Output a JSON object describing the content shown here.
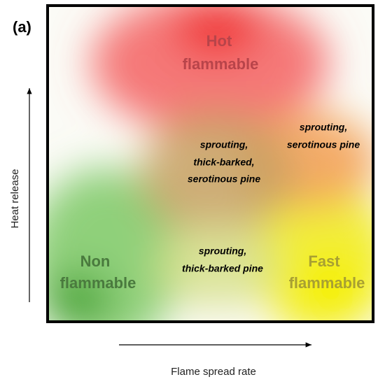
{
  "panel_label": "(a)",
  "zones": [
    {
      "lines": [
        "Hot",
        "flammable"
      ]
    },
    {
      "lines": [
        "Non",
        "flammable"
      ]
    },
    {
      "lines": [
        "Fast",
        "flammable"
      ]
    }
  ],
  "annotations": [
    {
      "lines": [
        "sprouting,",
        "thick-barked,",
        "serotinous pine"
      ]
    },
    {
      "lines": [
        "sprouting,",
        "serotinous pine"
      ]
    },
    {
      "lines": [
        "sprouting,",
        "thick-barked pine"
      ]
    }
  ],
  "axes": {
    "y_label": "Heat release",
    "x_label": "Flame spread rate"
  }
}
